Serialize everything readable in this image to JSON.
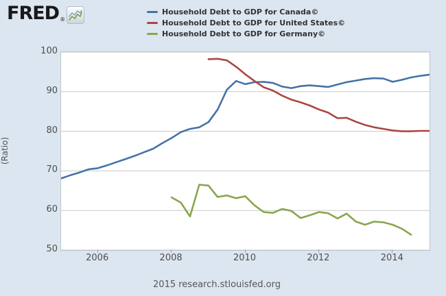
{
  "page": {
    "background": "#dce6f0",
    "plot_background": "#ffffff",
    "grid_color": "#c8c8c8"
  },
  "logo": {
    "text": "FRED",
    "registered": "®",
    "icon": "fred-sparkline-icon"
  },
  "legend": {
    "items": [
      {
        "label": "Household Debt to GDP for Canada©",
        "color": "#4572a7"
      },
      {
        "label": "Household Debt to GDP for United States©",
        "color": "#aa4643"
      },
      {
        "label": "Household Debt to GDP for Germany©",
        "color": "#89a54e"
      }
    ]
  },
  "footer": {
    "text": "2015 research.stlouisfed.org"
  },
  "chart_data": {
    "type": "line",
    "title": "",
    "xlabel": "",
    "ylabel": "(Ratio)",
    "xlim": [
      2005,
      2015
    ],
    "ylim": [
      50,
      100
    ],
    "y_ticks": [
      100,
      90,
      80,
      70,
      60,
      50
    ],
    "x_ticks": [
      2006,
      2008,
      2010,
      2012,
      2014
    ],
    "grid": true,
    "legend_position": "top",
    "frequency": "quarterly",
    "series": [
      {
        "name": "Household Debt to GDP for Canada©",
        "color": "#4572a7",
        "start": 2005.0,
        "step": 0.25,
        "values": [
          68.1,
          68.9,
          69.6,
          70.4,
          70.7,
          71.4,
          72.2,
          73.0,
          73.8,
          74.7,
          75.6,
          77.0,
          78.3,
          79.8,
          80.6,
          81.0,
          82.3,
          85.5,
          90.5,
          92.7,
          91.9,
          92.4,
          92.5,
          92.2,
          91.3,
          90.9,
          91.4,
          91.6,
          91.4,
          91.2,
          91.8,
          92.4,
          92.8,
          93.2,
          93.4,
          93.3,
          92.5,
          93.0,
          93.6,
          94.0,
          94.3
        ]
      },
      {
        "name": "Household Debt to GDP for United States©",
        "color": "#aa4643",
        "start": 2009.0,
        "step": 0.25,
        "values": [
          98.2,
          98.3,
          97.9,
          96.3,
          94.4,
          92.7,
          91.1,
          90.3,
          89.0,
          88.0,
          87.3,
          86.5,
          85.5,
          84.7,
          83.3,
          83.4,
          82.4,
          81.6,
          81.0,
          80.6,
          80.2,
          80.0,
          80.0,
          80.1,
          80.1
        ]
      },
      {
        "name": "Household Debt to GDP for Germany©",
        "color": "#89a54e",
        "start": 2008.0,
        "step": 0.25,
        "values": [
          63.3,
          62.0,
          58.5,
          66.5,
          66.3,
          63.4,
          63.8,
          63.1,
          63.6,
          61.3,
          59.6,
          59.4,
          60.4,
          59.9,
          58.1,
          58.8,
          59.6,
          59.3,
          58.0,
          59.2,
          57.2,
          56.4,
          57.2,
          57.0,
          56.4,
          55.4,
          53.9
        ]
      }
    ]
  }
}
